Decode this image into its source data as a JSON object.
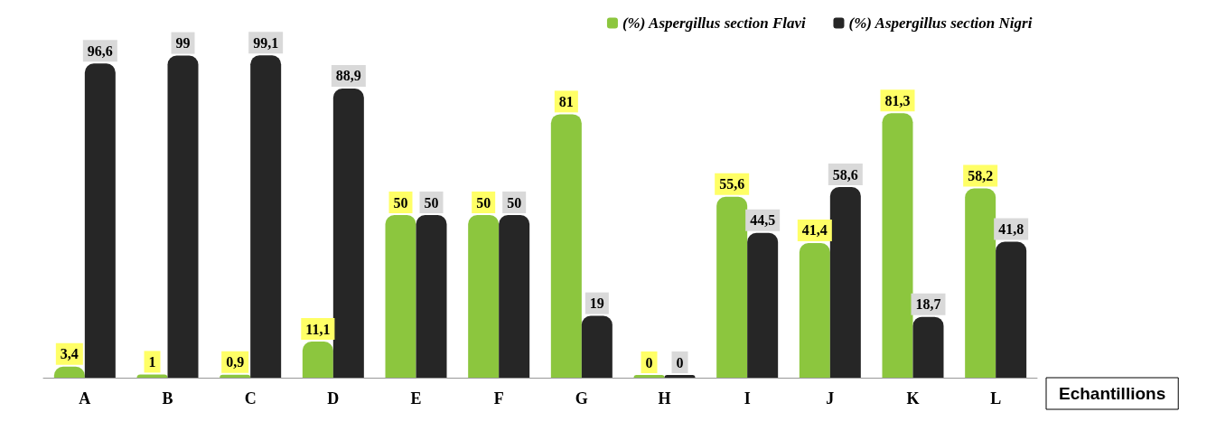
{
  "chart_data": {
    "type": "bar",
    "xlabel": "Echantillions",
    "legend": "top right",
    "grid": false,
    "categories": [
      "A",
      "B",
      "C",
      "D",
      "E",
      "F",
      "G",
      "H",
      "I",
      "J",
      "K",
      "L"
    ],
    "series": [
      {
        "name": "(%) Aspergillus section Flavi",
        "color": "#8cc63e",
        "values": [
          3.4,
          1,
          0.9,
          11.1,
          50,
          50,
          81,
          0,
          55.6,
          41.4,
          81.3,
          58.2
        ],
        "value_labels": [
          "3,4",
          "1",
          "0,9",
          "11,1",
          "50",
          "50",
          "81",
          "0",
          "55,6",
          "41,4",
          "81,3",
          "58,2"
        ]
      },
      {
        "name": "(%) Aspergillus section Nigri",
        "color": "#262626",
        "values": [
          96.6,
          99,
          99.1,
          88.9,
          50,
          50,
          19,
          0,
          44.5,
          58.6,
          18.7,
          41.8
        ],
        "value_labels": [
          "96,6",
          "99",
          "99,1",
          "88,9",
          "50",
          "50",
          "19",
          "0",
          "44,5",
          "58,6",
          "18,7",
          "41,8"
        ]
      }
    ]
  }
}
